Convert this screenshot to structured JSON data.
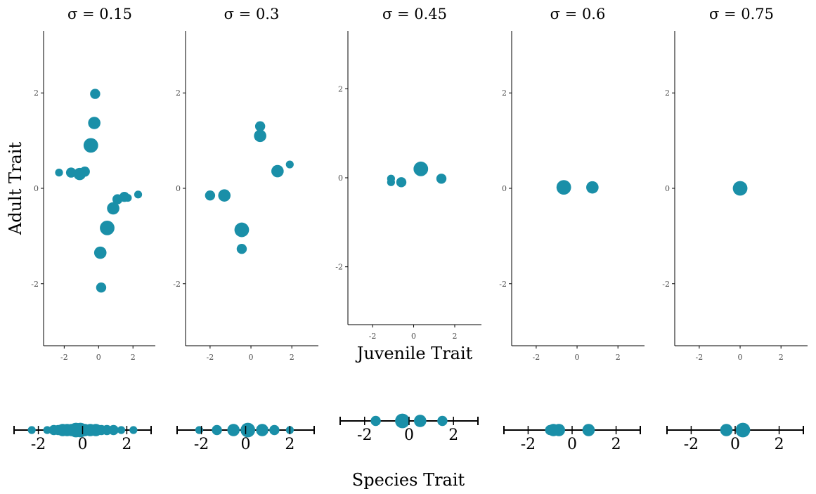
{
  "figure": {
    "ylabel": "Adult Trait",
    "xlabel_top": "Juvenile Trait",
    "xlabel_bottom": "Species Trait"
  },
  "colors": {
    "point": "#1a8fa8",
    "axis": "#000000",
    "tick_text": "#4d4d4d"
  },
  "chart_data": [
    {
      "type": "scatter",
      "title": "σ = 0.15",
      "xlabel": "",
      "ylabel": "Adult Trait",
      "xlim": [
        -3.2,
        3.3
      ],
      "ylim": [
        -3.3,
        3.3
      ],
      "xticks": [
        -2,
        0,
        2
      ],
      "yticks": [
        -2,
        0,
        2
      ],
      "grid": false,
      "points": [
        {
          "x": -2.3,
          "y": 0.33,
          "size": 1
        },
        {
          "x": -1.6,
          "y": 0.33,
          "size": 2
        },
        {
          "x": -1.1,
          "y": 0.3,
          "size": 3
        },
        {
          "x": -0.8,
          "y": 0.35,
          "size": 2
        },
        {
          "x": -0.2,
          "y": 1.98,
          "size": 2
        },
        {
          "x": -0.25,
          "y": 1.37,
          "size": 3
        },
        {
          "x": -0.45,
          "y": 0.9,
          "size": 4
        },
        {
          "x": 0.15,
          "y": -2.08,
          "size": 2
        },
        {
          "x": 0.1,
          "y": -1.35,
          "size": 3
        },
        {
          "x": 0.5,
          "y": -0.83,
          "size": 4
        },
        {
          "x": 0.85,
          "y": -0.42,
          "size": 3
        },
        {
          "x": 1.1,
          "y": -0.23,
          "size": 2
        },
        {
          "x": 1.5,
          "y": -0.18,
          "size": 2
        },
        {
          "x": 1.7,
          "y": -0.2,
          "size": 1
        },
        {
          "x": 2.3,
          "y": -0.13,
          "size": 1
        }
      ]
    },
    {
      "type": "scatter",
      "title": "σ = 0.3",
      "xlabel": "",
      "ylabel": "",
      "xlim": [
        -3.2,
        3.3
      ],
      "ylim": [
        -3.3,
        3.3
      ],
      "xticks": [
        -2,
        0,
        2
      ],
      "yticks": [
        -2,
        0,
        2
      ],
      "grid": false,
      "points": [
        {
          "x": -2.0,
          "y": -0.15,
          "size": 2
        },
        {
          "x": -1.3,
          "y": -0.15,
          "size": 3
        },
        {
          "x": -0.45,
          "y": -0.87,
          "size": 4
        },
        {
          "x": -0.45,
          "y": -1.27,
          "size": 2
        },
        {
          "x": 0.45,
          "y": 1.3,
          "size": 2
        },
        {
          "x": 0.45,
          "y": 1.1,
          "size": 3
        },
        {
          "x": 1.3,
          "y": 0.36,
          "size": 3
        },
        {
          "x": 1.9,
          "y": 0.5,
          "size": 1
        }
      ]
    },
    {
      "type": "scatter",
      "title": "σ = 0.45",
      "xlabel": "Juvenile Trait",
      "ylabel": "",
      "xlim": [
        -3.2,
        3.3
      ],
      "ylim": [
        -3.3,
        3.3
      ],
      "xticks": [
        -2,
        0,
        2
      ],
      "yticks": [
        -2,
        0,
        2
      ],
      "grid": false,
      "points": [
        {
          "x": -1.1,
          "y": -0.02,
          "size": 1
        },
        {
          "x": -1.1,
          "y": -0.1,
          "size": 1
        },
        {
          "x": -0.6,
          "y": -0.1,
          "size": 2
        },
        {
          "x": 0.35,
          "y": 0.2,
          "size": 4
        },
        {
          "x": 1.35,
          "y": -0.02,
          "size": 2
        }
      ]
    },
    {
      "type": "scatter",
      "title": "σ = 0.6",
      "xlabel": "",
      "ylabel": "",
      "xlim": [
        -3.2,
        3.3
      ],
      "ylim": [
        -3.3,
        3.3
      ],
      "xticks": [
        -2,
        0,
        2
      ],
      "yticks": [
        -2,
        0,
        2
      ],
      "grid": false,
      "points": [
        {
          "x": -0.65,
          "y": 0.02,
          "size": 4
        },
        {
          "x": 0.75,
          "y": 0.02,
          "size": 3
        }
      ]
    },
    {
      "type": "scatter",
      "title": "σ = 0.75",
      "xlabel": "",
      "ylabel": "",
      "xlim": [
        -3.2,
        3.3
      ],
      "ylim": [
        -3.3,
        3.3
      ],
      "xticks": [
        -2,
        0,
        2
      ],
      "yticks": [
        -2,
        0,
        2
      ],
      "grid": false,
      "points": [
        {
          "x": 0.0,
          "y": 0.0,
          "size": 4
        }
      ]
    }
  ],
  "species_data": [
    {
      "xlim": [
        -3.1,
        3.1
      ],
      "xticks": [
        -2,
        0,
        2
      ],
      "values": [
        -2.3,
        -1.6,
        -1.3,
        -1.1,
        -0.9,
        -0.7,
        -0.5,
        -0.3,
        -0.1,
        0.1,
        0.35,
        0.6,
        0.85,
        1.1,
        1.4,
        1.75,
        2.3
      ],
      "sizes": [
        1,
        1,
        2,
        2,
        3,
        3,
        3,
        4,
        4,
        3,
        3,
        3,
        2,
        2,
        2,
        1,
        1
      ]
    },
    {
      "xlim": [
        -3.1,
        3.1
      ],
      "xticks": [
        -2,
        0,
        2
      ],
      "values": [
        -2.1,
        -1.3,
        -0.55,
        0.1,
        0.75,
        1.3,
        2.0
      ],
      "sizes": [
        1,
        2,
        3,
        4,
        3,
        2,
        1
      ]
    },
    {
      "xlim": [
        -3.1,
        3.1
      ],
      "xticks": [
        -2,
        0,
        2
      ],
      "values": [
        -1.5,
        -0.3,
        0.5,
        1.5
      ],
      "sizes": [
        2,
        4,
        3,
        2
      ]
    },
    {
      "xlim": [
        -3.1,
        3.1
      ],
      "xticks": [
        -2,
        0,
        2
      ],
      "values": [
        -1.0,
        -0.85,
        -0.6,
        0.75
      ],
      "sizes": [
        2,
        3,
        3,
        3
      ]
    },
    {
      "xlim": [
        -3.1,
        3.1
      ],
      "xticks": [
        -2,
        0,
        2
      ],
      "values": [
        -0.4,
        0.35
      ],
      "sizes": [
        3,
        4
      ]
    }
  ]
}
